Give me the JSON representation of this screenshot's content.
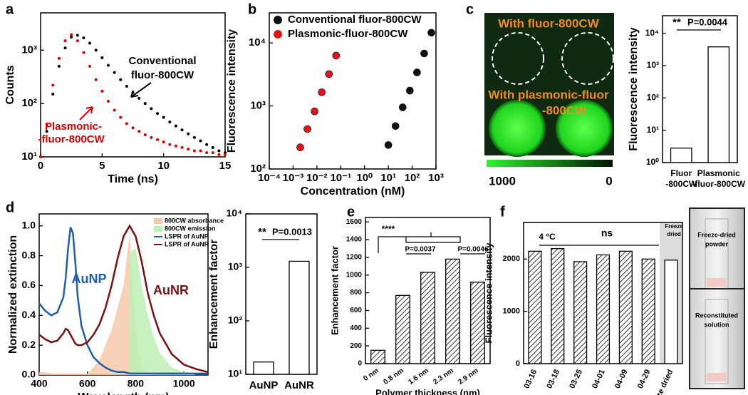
{
  "chart_data": [
    {
      "panel": "a",
      "type": "line",
      "markers": true,
      "xlabel": "Time (ns)",
      "ylabel": "Counts",
      "xlim": [
        0,
        15
      ],
      "ylim": [
        10,
        5000
      ],
      "log_y": true,
      "xticks": [
        0,
        5,
        10,
        15
      ],
      "yticks": [
        {
          "value": 10,
          "label": "10¹"
        },
        {
          "value": 100,
          "label": "10²"
        },
        {
          "value": 1000,
          "label": "10³"
        }
      ],
      "x": [
        0,
        0.5,
        1,
        1.5,
        2,
        2.5,
        3,
        3.5,
        4,
        4.5,
        5,
        5.5,
        6,
        6.5,
        7,
        7.5,
        8,
        8.5,
        9,
        9.5,
        10,
        10.5,
        11,
        11.5,
        12,
        12.5,
        13,
        13.5,
        14,
        14.5,
        15
      ],
      "series": [
        {
          "color": "#000000",
          "values": [
            10,
            30,
            150,
            500,
            1100,
            1750,
            1900,
            1700,
            1350,
            1000,
            720,
            520,
            380,
            280,
            210,
            160,
            125,
            100,
            80,
            65,
            55,
            45,
            38,
            32,
            27,
            23,
            20,
            17,
            15,
            13,
            12
          ]
        },
        {
          "color": "#e00000",
          "values": [
            10,
            40,
            220,
            700,
            1500,
            1950,
            1500,
            900,
            500,
            280,
            170,
            110,
            75,
            55,
            42,
            35,
            30,
            26,
            23,
            21,
            19,
            17,
            16,
            15,
            14,
            13,
            13,
            12,
            12,
            11,
            11
          ]
        }
      ],
      "annotations": [
        "Conventional",
        "fluor-800CW",
        "Plasmonic-",
        "-fluor-800CW"
      ]
    },
    {
      "panel": "b",
      "type": "scatter",
      "xlabel": "Concentration (nM)",
      "ylabel": "Fluorescence intensity",
      "xlim": [
        0.0001,
        1000
      ],
      "ylim": [
        100,
        30000
      ],
      "log_x": true,
      "log_y": true,
      "legend": "upper left",
      "xticks": [
        {
          "value": 0.0001,
          "label": "10⁻⁴"
        },
        {
          "value": 0.001,
          "label": "10⁻³"
        },
        {
          "value": 0.01,
          "label": "10⁻²"
        },
        {
          "value": 0.1,
          "label": "10⁻¹"
        },
        {
          "value": 1,
          "label": "10⁰"
        },
        {
          "value": 10,
          "label": "10¹"
        },
        {
          "value": 100,
          "label": "10²"
        },
        {
          "value": 1000,
          "label": "10³"
        }
      ],
      "yticks": [
        {
          "value": 100,
          "label": "10²"
        },
        {
          "value": 1000,
          "label": "10³"
        },
        {
          "value": 10000,
          "label": "10⁴"
        }
      ],
      "series": [
        {
          "name": "Conventional fluor-800CW",
          "color": "#111111",
          "x": [
            10,
            20,
            40,
            80,
            160,
            320,
            640
          ],
          "values": [
            240,
            480,
            950,
            1750,
            3400,
            6800,
            14500
          ]
        },
        {
          "name": "Plasmonic-fluor-800CW",
          "color": "#e01515",
          "x": [
            0.002,
            0.004,
            0.008,
            0.016,
            0.032,
            0.064
          ],
          "values": [
            220,
            430,
            820,
            1650,
            3200,
            6300
          ]
        }
      ]
    },
    {
      "panel": "c",
      "type": "image",
      "labels": [
        "With fluor-800CW",
        "With plasmonic-fluor",
        "-800CW"
      ],
      "cticks": [
        1000,
        0
      ]
    },
    {
      "type": "bar",
      "ylabel": "Fluorescence intensity",
      "ylim": [
        1,
        35000
      ],
      "log_y": true,
      "color": "#ffffff",
      "yticks": [
        {
          "value": 1,
          "label": "10⁰"
        },
        {
          "value": 10,
          "label": "10¹"
        },
        {
          "value": 100,
          "label": "10²"
        },
        {
          "value": 1000,
          "label": "10³"
        },
        {
          "value": 10000,
          "label": "10⁴"
        }
      ],
      "categories": [
        [
          "Fluor",
          "-800CW"
        ],
        [
          "Plasmonic",
          "-fluor-800CW"
        ]
      ],
      "values": [
        2.8,
        3800
      ],
      "annotations": [
        "**",
        "P=0.0044"
      ]
    },
    {
      "panel": "d",
      "type": "line",
      "xlabel": "Wavelength (nm)",
      "ylabel": "Normalized extinction",
      "xlim": [
        400,
        1100
      ],
      "ylim": [
        0,
        1.08
      ],
      "legend": "upper right",
      "xticks": [
        400,
        600,
        800,
        1000
      ],
      "yticks": [
        {
          "value": 0,
          "label": "0.0"
        },
        0.2,
        0.4,
        0.6,
        0.8,
        {
          "value": 1,
          "label": "1.0"
        }
      ],
      "x": [
        400,
        425,
        450,
        475,
        500,
        510,
        520,
        530,
        540,
        550,
        560,
        575,
        600,
        625,
        650,
        675,
        700,
        725,
        750,
        775,
        800,
        825,
        850,
        875,
        900,
        950,
        1000,
        1050,
        1100
      ],
      "series": [
        {
          "name": "800CW absorbance",
          "color": "#f6c9a8",
          "style": "area",
          "values": [
            0.02,
            0.02,
            0.01,
            0.01,
            0.01,
            0.01,
            0.01,
            0.01,
            0.01,
            0.01,
            0.01,
            0.01,
            0.01,
            0.05,
            0.1,
            0.2,
            0.3,
            0.45,
            0.6,
            0.95,
            0.3,
            0.05,
            0.02,
            0,
            0,
            0,
            0,
            0,
            0
          ]
        },
        {
          "name": "800CW emission",
          "color": "#bdf0b4",
          "style": "area",
          "values": [
            null,
            null,
            null,
            null,
            null,
            null,
            null,
            null,
            null,
            null,
            null,
            null,
            null,
            null,
            null,
            null,
            null,
            null,
            null,
            0.82,
            0.85,
            0.6,
            0.4,
            0.25,
            0.15,
            0.05,
            0.02,
            0,
            0
          ]
        },
        {
          "name": "LSPR of AuNP",
          "color": "#1f5fa8",
          "values": [
            0.48,
            0.43,
            0.4,
            0.42,
            0.52,
            0.65,
            0.85,
            0.99,
            0.95,
            0.75,
            0.52,
            0.33,
            0.2,
            0.12,
            0.08,
            0.05,
            0.03,
            0.02,
            0.02,
            0.01,
            0.01,
            0.01,
            0.01,
            0.01,
            0.01,
            0.01,
            0.01,
            0.01,
            0.01
          ]
        },
        {
          "name": "LSPR of AuNR",
          "color": "#7a1010",
          "values": [
            0.27,
            0.24,
            0.22,
            0.23,
            0.28,
            0.31,
            0.3,
            0.27,
            0.24,
            0.21,
            0.2,
            0.2,
            0.22,
            0.27,
            0.34,
            0.45,
            0.6,
            0.78,
            0.93,
            1.0,
            0.93,
            0.76,
            0.55,
            0.4,
            0.28,
            0.14,
            0.07,
            0.04,
            0.02
          ]
        }
      ],
      "annotations": [
        "AuNP",
        "AuNR"
      ]
    },
    {
      "type": "bar",
      "ylabel": "Enhancement factor",
      "ylim": [
        10,
        10000
      ],
      "log_y": true,
      "color": "#ffffff",
      "yticks": [
        {
          "value": 10,
          "label": "10¹"
        },
        {
          "value": 100,
          "label": "10²"
        },
        {
          "value": 1000,
          "label": "10³"
        },
        {
          "value": 10000,
          "label": "10⁴"
        }
      ],
      "categories": [
        "AuNP",
        "AuNR"
      ],
      "values": [
        17,
        1300
      ],
      "annotations": [
        "**",
        "P=0.0013"
      ]
    },
    {
      "panel": "e",
      "type": "bar",
      "hatch": true,
      "xlabel": "Polymer thickness (nm)",
      "ylabel": "Enhancement factor",
      "ylim": [
        0,
        1650
      ],
      "yticks": [
        0,
        200,
        400,
        600,
        800,
        1000,
        1200,
        1400,
        1600
      ],
      "color": "#ffffff",
      "categories": [
        "0 nm",
        "0.8 nm",
        "1.6 nm",
        "2.3 nm",
        "2.9 nm"
      ],
      "values": [
        150,
        770,
        1030,
        1180,
        920
      ],
      "annotations": [
        "****",
        "P=0.0037",
        "P=0.0046"
      ]
    },
    {
      "panel": "f",
      "type": "bar",
      "hatch": true,
      "ylabel": "Fluorescence intensity",
      "ylim": [
        0,
        2700
      ],
      "yticks": [
        0,
        1000,
        2000
      ],
      "color": "#ffffff",
      "categories": [
        "03-16",
        "03-18",
        "03-25",
        "04-01",
        "04-09",
        "04-29",
        "Freeze dried"
      ],
      "values": [
        2150,
        2200,
        1950,
        2080,
        2150,
        2000,
        1980
      ],
      "annotations": [
        "4 °C",
        "ns",
        "Freeze",
        "dried"
      ]
    },
    {
      "type": "image",
      "labels": [
        [
          "Freeze-dried",
          "powder"
        ],
        [
          "Reconstituted",
          "solution"
        ]
      ]
    }
  ]
}
